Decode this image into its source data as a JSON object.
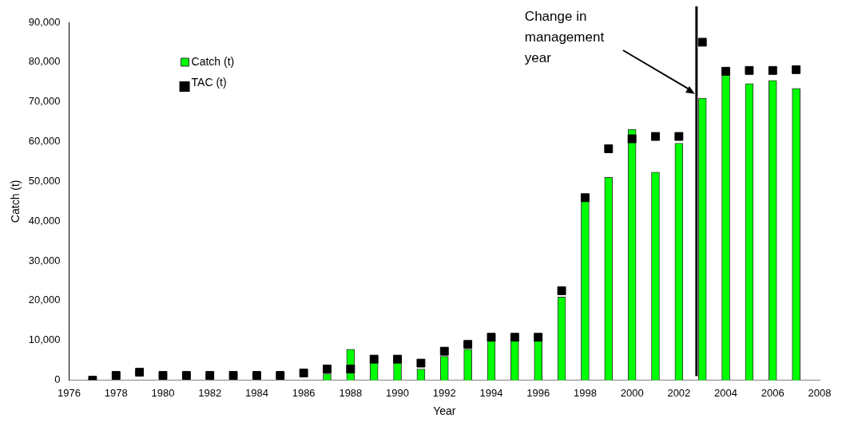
{
  "chart_data": {
    "type": "bar",
    "xlabel": "Year",
    "ylabel": "Catch (t)",
    "x": [
      1977,
      1978,
      1979,
      1980,
      1981,
      1982,
      1983,
      1984,
      1985,
      1986,
      1987,
      1988,
      1989,
      1990,
      1991,
      1992,
      1993,
      1994,
      1995,
      1996,
      1997,
      1998,
      1999,
      2000,
      2001,
      2002,
      2003,
      2004,
      2005,
      2006,
      2007
    ],
    "series": [
      {
        "name": "Catch (t)",
        "color": "#00ff00",
        "values": [
          0,
          0,
          0,
          0,
          0,
          0,
          0,
          0,
          0,
          0,
          1600,
          7800,
          4500,
          4500,
          2800,
          6000,
          7800,
          10000,
          10000,
          10000,
          20900,
          45500,
          51000,
          63100,
          52300,
          59600,
          70900,
          76800,
          74600,
          75400,
          73400
        ]
      },
      {
        "name": "TAC (t)",
        "type": "scatter",
        "color": "#000000",
        "values": [
          0,
          1200,
          2000,
          1200,
          1200,
          1200,
          1200,
          1200,
          1200,
          1800,
          2800,
          2800,
          5300,
          5300,
          4300,
          7300,
          9000,
          10800,
          10800,
          10800,
          22500,
          45900,
          58200,
          60700,
          61300,
          61300,
          85000,
          77700,
          77900,
          77900,
          78100
        ]
      }
    ],
    "marker": "square",
    "xlim": [
      1976,
      2008
    ],
    "xticks": [
      1976,
      1978,
      1980,
      1982,
      1984,
      1986,
      1988,
      1990,
      1992,
      1994,
      1996,
      1998,
      2000,
      2002,
      2004,
      2006,
      2008
    ],
    "ylim": [
      0,
      90000
    ],
    "yticks": [
      {
        "value": 0,
        "label": "0"
      },
      {
        "value": 10000,
        "label": "10,000"
      },
      {
        "value": 20000,
        "label": "20,000"
      },
      {
        "value": 30000,
        "label": "30,000"
      },
      {
        "value": 40000,
        "label": "40,000"
      },
      {
        "value": 50000,
        "label": "50,000"
      },
      {
        "value": 60000,
        "label": "60,000"
      },
      {
        "value": 70000,
        "label": "70,000"
      },
      {
        "value": 80000,
        "label": "80,000"
      },
      {
        "value": 90000,
        "label": "90,000"
      }
    ],
    "ref_lines": [
      {
        "axis": "x",
        "value": 2002.75,
        "color": "#000000"
      }
    ],
    "annotations": [
      "Change in management year"
    ],
    "legend": "top left"
  }
}
